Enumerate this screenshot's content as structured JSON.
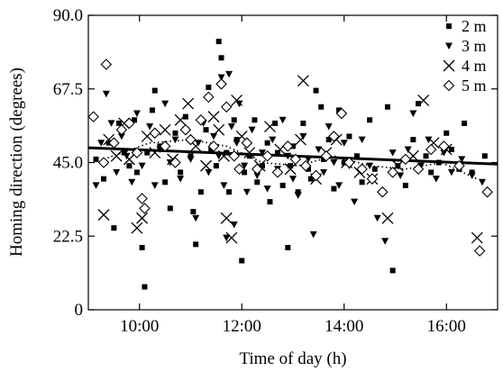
{
  "chart_data": {
    "type": "scatter",
    "xlabel": "Time of day (h)",
    "ylabel": "Homing direction (degrees)",
    "xlim": [
      9.0,
      17.0
    ],
    "ylim": [
      0,
      90
    ],
    "x_ticks": [
      10,
      12,
      14,
      16
    ],
    "x_tick_labels": [
      "10:00",
      "12:00",
      "14:00",
      "16:00"
    ],
    "y_ticks": [
      0,
      22.5,
      45,
      67.5,
      90
    ],
    "y_tick_labels": [
      "0",
      "22.5",
      "45.0",
      "67.5",
      "90.0"
    ],
    "grid": false,
    "legend": {
      "placement": "top-right",
      "entries": [
        {
          "label": "2 m",
          "marker": "square"
        },
        {
          "label": "3 m",
          "marker": "triangle-down"
        },
        {
          "label": "4 m",
          "marker": "x"
        },
        {
          "label": "5 m",
          "marker": "diamond"
        }
      ]
    },
    "series": [
      {
        "marker": "square",
        "points": [
          [
            9.15,
            46
          ],
          [
            9.3,
            40
          ],
          [
            9.4,
            51
          ],
          [
            9.5,
            25
          ],
          [
            9.6,
            57
          ],
          [
            9.7,
            48
          ],
          [
            9.8,
            44
          ],
          [
            9.9,
            58
          ],
          [
            9.95,
            42
          ],
          [
            10.05,
            19
          ],
          [
            10.1,
            7
          ],
          [
            10.15,
            48
          ],
          [
            10.25,
            61
          ],
          [
            10.3,
            67
          ],
          [
            10.4,
            50
          ],
          [
            10.5,
            39
          ],
          [
            10.6,
            31
          ],
          [
            10.7,
            54
          ],
          [
            10.8,
            42
          ],
          [
            10.9,
            59
          ],
          [
            11.0,
            47
          ],
          [
            11.05,
            30
          ],
          [
            11.1,
            20
          ],
          [
            11.2,
            36
          ],
          [
            11.3,
            55
          ],
          [
            11.35,
            68
          ],
          [
            11.4,
            49
          ],
          [
            11.5,
            44
          ],
          [
            11.55,
            82
          ],
          [
            11.6,
            77
          ],
          [
            11.7,
            48
          ],
          [
            11.75,
            36
          ],
          [
            11.85,
            58
          ],
          [
            11.9,
            52
          ],
          [
            12.0,
            15
          ],
          [
            12.05,
            42
          ],
          [
            12.15,
            47
          ],
          [
            12.25,
            58
          ],
          [
            12.3,
            39
          ],
          [
            12.4,
            44
          ],
          [
            12.5,
            51
          ],
          [
            12.55,
            33
          ],
          [
            12.65,
            57
          ],
          [
            12.7,
            48
          ],
          [
            12.8,
            38
          ],
          [
            12.9,
            19
          ],
          [
            12.95,
            44
          ],
          [
            13.0,
            50
          ],
          [
            13.1,
            36
          ],
          [
            13.2,
            57
          ],
          [
            13.3,
            43
          ],
          [
            13.35,
            40
          ],
          [
            13.45,
            67
          ],
          [
            13.55,
            62
          ],
          [
            13.6,
            46
          ],
          [
            13.7,
            52
          ],
          [
            13.8,
            37
          ],
          [
            13.9,
            61
          ],
          [
            14.0,
            45
          ],
          [
            14.1,
            53
          ],
          [
            14.25,
            47
          ],
          [
            14.35,
            39
          ],
          [
            14.5,
            58
          ],
          [
            14.6,
            43
          ],
          [
            14.75,
            36
          ],
          [
            14.85,
            62
          ],
          [
            14.95,
            12
          ],
          [
            15.05,
            44
          ],
          [
            15.2,
            38
          ],
          [
            15.35,
            52
          ],
          [
            15.45,
            63
          ],
          [
            15.6,
            47
          ],
          [
            15.7,
            42
          ],
          [
            15.85,
            45
          ],
          [
            16.0,
            54
          ],
          [
            16.1,
            49
          ],
          [
            16.25,
            43
          ],
          [
            16.35,
            57
          ],
          [
            16.5,
            42
          ],
          [
            16.75,
            47
          ]
        ]
      },
      {
        "marker": "triangle-down",
        "points": [
          [
            9.15,
            38
          ],
          [
            9.25,
            51
          ],
          [
            9.35,
            66
          ],
          [
            9.45,
            57
          ],
          [
            9.55,
            42
          ],
          [
            9.65,
            53
          ],
          [
            9.75,
            47
          ],
          [
            9.85,
            39
          ],
          [
            9.95,
            60
          ],
          [
            10.05,
            44
          ],
          [
            10.2,
            56
          ],
          [
            10.3,
            38
          ],
          [
            10.4,
            49
          ],
          [
            10.5,
            63
          ],
          [
            10.6,
            45
          ],
          [
            10.7,
            52
          ],
          [
            10.8,
            40
          ],
          [
            10.9,
            55
          ],
          [
            11.0,
            46
          ],
          [
            11.1,
            28
          ],
          [
            11.15,
            51
          ],
          [
            11.25,
            57
          ],
          [
            11.35,
            42
          ],
          [
            11.45,
            53
          ],
          [
            11.55,
            47
          ],
          [
            11.6,
            71
          ],
          [
            11.65,
            38
          ],
          [
            11.7,
            22
          ],
          [
            11.75,
            72
          ],
          [
            11.8,
            56
          ],
          [
            11.85,
            26
          ],
          [
            11.9,
            51
          ],
          [
            11.95,
            63
          ],
          [
            12.05,
            44
          ],
          [
            12.1,
            36
          ],
          [
            12.2,
            55
          ],
          [
            12.3,
            41
          ],
          [
            12.4,
            48
          ],
          [
            12.5,
            37
          ],
          [
            12.6,
            52
          ],
          [
            12.7,
            43
          ],
          [
            12.8,
            58
          ],
          [
            12.9,
            47
          ],
          [
            13.0,
            40
          ],
          [
            13.1,
            35
          ],
          [
            13.2,
            53
          ],
          [
            13.3,
            46
          ],
          [
            13.4,
            23
          ],
          [
            13.5,
            49
          ],
          [
            13.6,
            42
          ],
          [
            13.7,
            56
          ],
          [
            13.8,
            45
          ],
          [
            13.9,
            38
          ],
          [
            14.0,
            51
          ],
          [
            14.1,
            44
          ],
          [
            14.2,
            33
          ],
          [
            14.35,
            52
          ],
          [
            14.5,
            44
          ],
          [
            14.65,
            28
          ],
          [
            14.8,
            21
          ],
          [
            14.95,
            48
          ],
          [
            15.1,
            41
          ],
          [
            15.25,
            49
          ],
          [
            15.35,
            60
          ],
          [
            15.5,
            44
          ],
          [
            15.65,
            52
          ],
          [
            15.8,
            40
          ],
          [
            15.95,
            48
          ],
          [
            16.1,
            42
          ],
          [
            16.3,
            46
          ],
          [
            16.5,
            41
          ],
          [
            16.7,
            39
          ]
        ]
      },
      {
        "marker": "x",
        "points": [
          [
            9.3,
            29
          ],
          [
            9.4,
            52
          ],
          [
            9.55,
            47
          ],
          [
            9.7,
            57
          ],
          [
            9.8,
            46
          ],
          [
            9.95,
            25
          ],
          [
            10.05,
            28
          ],
          [
            10.15,
            53
          ],
          [
            10.3,
            48
          ],
          [
            10.5,
            55
          ],
          [
            10.65,
            46
          ],
          [
            10.8,
            58
          ],
          [
            10.95,
            63
          ],
          [
            11.1,
            50
          ],
          [
            11.3,
            44
          ],
          [
            11.45,
            59
          ],
          [
            11.55,
            55
          ],
          [
            11.65,
            47
          ],
          [
            11.7,
            28
          ],
          [
            11.8,
            22
          ],
          [
            11.9,
            64
          ],
          [
            12.0,
            53
          ],
          [
            12.15,
            48
          ],
          [
            12.35,
            44
          ],
          [
            12.55,
            56
          ],
          [
            12.75,
            49
          ],
          [
            12.95,
            43
          ],
          [
            13.15,
            52
          ],
          [
            13.2,
            70
          ],
          [
            13.45,
            40
          ],
          [
            13.65,
            48
          ],
          [
            13.85,
            52
          ],
          [
            14.05,
            45
          ],
          [
            14.3,
            42
          ],
          [
            14.55,
            40
          ],
          [
            14.85,
            28
          ],
          [
            15.05,
            44
          ],
          [
            15.35,
            47
          ],
          [
            15.55,
            64
          ],
          [
            15.75,
            51
          ],
          [
            16.0,
            49
          ],
          [
            16.6,
            22
          ]
        ]
      },
      {
        "marker": "diamond",
        "points": [
          [
            9.1,
            59
          ],
          [
            9.3,
            45
          ],
          [
            9.35,
            75
          ],
          [
            9.5,
            51
          ],
          [
            9.65,
            55
          ],
          [
            9.8,
            57
          ],
          [
            9.95,
            48
          ],
          [
            10.05,
            34
          ],
          [
            10.1,
            31
          ],
          [
            10.3,
            54
          ],
          [
            10.5,
            50
          ],
          [
            10.7,
            45
          ],
          [
            10.9,
            55
          ],
          [
            11.0,
            52
          ],
          [
            11.2,
            58
          ],
          [
            11.35,
            65
          ],
          [
            11.45,
            50
          ],
          [
            11.6,
            69
          ],
          [
            11.7,
            62
          ],
          [
            11.85,
            47
          ],
          [
            11.95,
            43
          ],
          [
            12.1,
            51
          ],
          [
            12.3,
            43
          ],
          [
            12.5,
            47
          ],
          [
            12.7,
            42
          ],
          [
            12.9,
            50
          ],
          [
            13.05,
            46
          ],
          [
            13.25,
            44
          ],
          [
            13.45,
            41
          ],
          [
            13.65,
            47
          ],
          [
            13.8,
            53
          ],
          [
            13.95,
            60
          ],
          [
            14.1,
            45
          ],
          [
            14.35,
            43
          ],
          [
            14.55,
            40
          ],
          [
            14.75,
            36
          ],
          [
            14.95,
            42
          ],
          [
            15.2,
            46
          ],
          [
            15.45,
            43
          ],
          [
            15.7,
            49
          ],
          [
            15.95,
            50
          ],
          [
            16.25,
            44
          ],
          [
            16.65,
            18
          ],
          [
            16.8,
            36
          ]
        ]
      }
    ],
    "trend_lines": [
      {
        "style": "solid",
        "width": "thick",
        "x": [
          9.0,
          17.0
        ],
        "y": [
          49.5,
          44.5
        ]
      },
      {
        "style": "dotted",
        "x": [
          9.3,
          10.2,
          11.0,
          11.7,
          12.4,
          13.1,
          13.8,
          14.5,
          15.2,
          15.9,
          16.6
        ],
        "y": [
          46,
          51,
          52,
          50,
          45,
          44,
          47,
          44,
          43,
          45,
          40
        ]
      }
    ]
  }
}
